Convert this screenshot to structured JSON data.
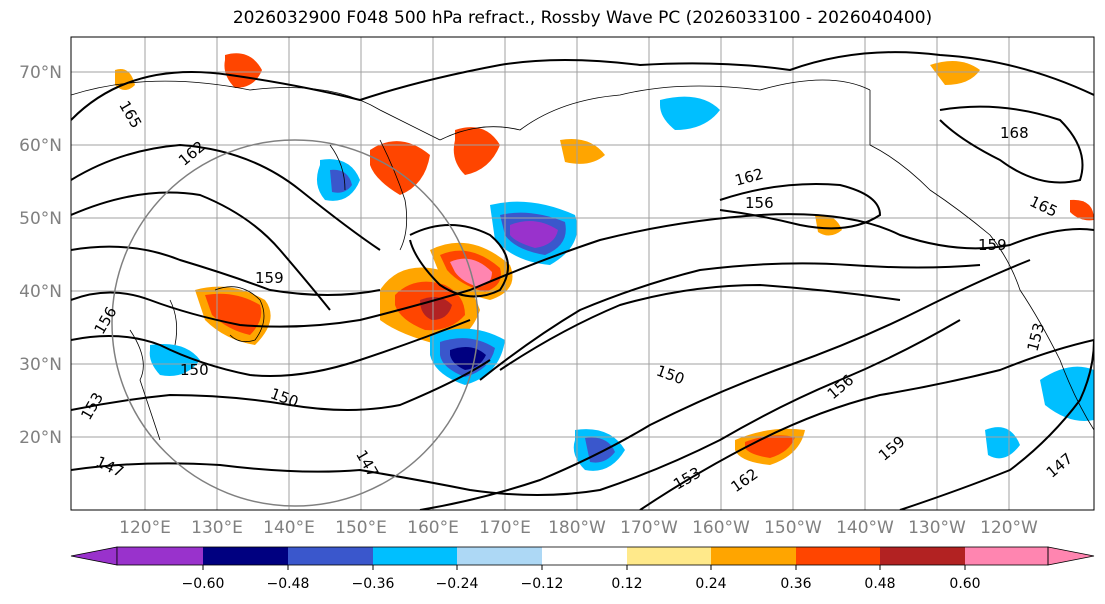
{
  "title": "2026032900 F048 500 hPa refract., Rossby Wave PC (2026033100 - 2026040400)",
  "map": {
    "lat_labels": [
      "70°N",
      "60°N",
      "50°N",
      "40°N",
      "30°N",
      "20°N"
    ],
    "lon_labels": [
      "120°E",
      "130°E",
      "140°E",
      "150°E",
      "160°E",
      "170°E",
      "180°W",
      "170°W",
      "160°W",
      "150°W",
      "140°W",
      "130°W",
      "120°W"
    ],
    "contour_labels": [
      "165",
      "162",
      "159",
      "156",
      "153",
      "150",
      "147",
      "168",
      "165",
      "162",
      "159",
      "156",
      "153",
      "150",
      "147",
      "153",
      "156",
      "159",
      "162",
      "150",
      "147"
    ]
  },
  "colorbar": {
    "ticks": [
      "−0.60",
      "−0.48",
      "−0.36",
      "−0.24",
      "−0.12",
      "0.12",
      "0.24",
      "0.36",
      "0.48",
      "0.60"
    ],
    "colors": [
      "#9932cc",
      "#000080",
      "#3a57cc",
      "#00bfff",
      "#add8f5",
      "#ffffff",
      "#ffe98a",
      "#ffa500",
      "#ff4500",
      "#b22222",
      "#ff85b0"
    ]
  }
}
